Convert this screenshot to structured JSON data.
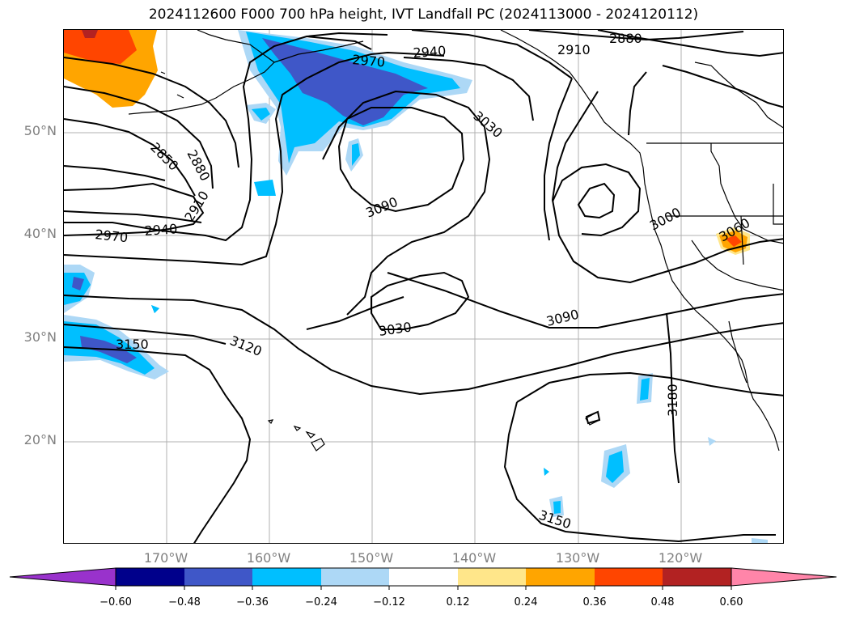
{
  "title": "2024112600 F000 700 hPa height, IVT Landfall PC (2024113000 - 2024120112)",
  "map": {
    "lat_labels": [
      "50°N",
      "40°N",
      "30°N",
      "20°N"
    ],
    "lon_labels": [
      "170°W",
      "160°W",
      "150°W",
      "140°W",
      "130°W",
      "120°W"
    ],
    "contour_labels": [
      "2880",
      "2910",
      "2970",
      "2940",
      "3030",
      "2850",
      "2880",
      "2910",
      "2970",
      "2940",
      "3090",
      "3000",
      "3060",
      "3030",
      "3090",
      "3120",
      "3150",
      "3180",
      "3150"
    ],
    "shading_colors": {
      "neg_strong": "#3f57c8",
      "neg_mid": "#00bfff",
      "neg_weak": "#add8f6",
      "pos_weak": "#ffe68a",
      "pos_mid": "#ffa500",
      "pos_strong": "#ff4500",
      "pos_max": "#b22222"
    }
  },
  "colorbar": {
    "tick_labels": [
      "−0.60",
      "−0.48",
      "−0.36",
      "−0.24",
      "−0.12",
      "0.12",
      "0.24",
      "0.36",
      "0.48",
      "0.60"
    ],
    "colors": [
      "#9932cc",
      "#00008b",
      "#3f57c8",
      "#00bfff",
      "#add8f6",
      "#ffffff",
      "#ffe68a",
      "#ffa500",
      "#ff4500",
      "#b22222",
      "#ff85a9"
    ]
  }
}
